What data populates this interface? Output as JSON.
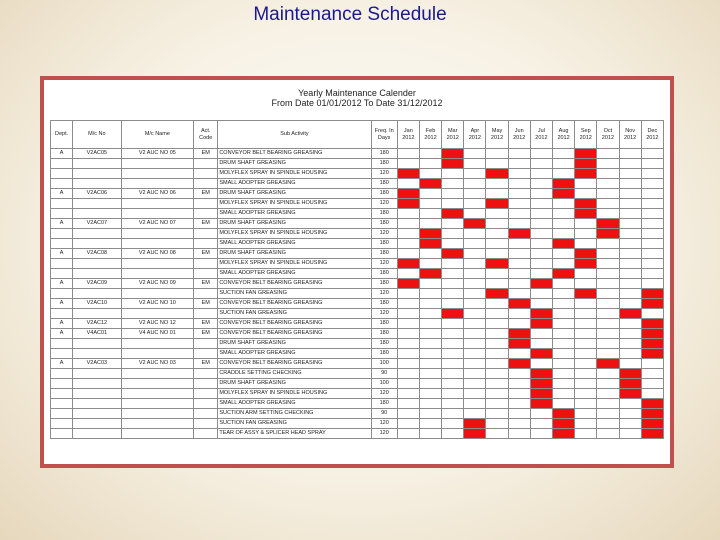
{
  "page_title": "Maintenance Schedule",
  "calendar": {
    "title": "Yearly Maintenance Calender",
    "date_range": "From Date 01/01/2012  To Date 31/12/2012"
  },
  "colors": {
    "frame": "#c0504d",
    "scheduled": "#ee1111"
  },
  "columns": [
    "Dept.",
    "M/c No",
    "M/c Name",
    "Act. Code",
    "Sub Activity",
    "Freq. In Days",
    "Jan 2012",
    "Feb 2012",
    "Mar 2012",
    "Apr 2012",
    "May 2012",
    "Jun 2012",
    "Jul 2012",
    "Aug 2012",
    "Sep 2012",
    "Oct 2012",
    "Nov 2012",
    "Dec 2012"
  ],
  "rows": [
    {
      "dept": "A",
      "mc_no": "V2AC05",
      "mc_name": "V2 AUC NO 05",
      "code": "EM",
      "activity": "CONVEYOR BELT BEARING GREASING",
      "freq": "180",
      "months": [
        0,
        0,
        1,
        0,
        0,
        0,
        0,
        0,
        1,
        0,
        0,
        0
      ]
    },
    {
      "dept": "",
      "mc_no": "",
      "mc_name": "",
      "code": "",
      "activity": "DRUM SHAFT GREASING",
      "freq": "180",
      "months": [
        0,
        0,
        1,
        0,
        0,
        0,
        0,
        0,
        1,
        0,
        0,
        0
      ]
    },
    {
      "dept": "",
      "mc_no": "",
      "mc_name": "",
      "code": "",
      "activity": "MOLYFLEX SPRAY IN SPINDLE HOUSING",
      "freq": "120",
      "months": [
        1,
        0,
        0,
        0,
        1,
        0,
        0,
        0,
        1,
        0,
        0,
        0
      ]
    },
    {
      "dept": "",
      "mc_no": "",
      "mc_name": "",
      "code": "",
      "activity": "SMALL ADOPTER GREASING",
      "freq": "180",
      "months": [
        0,
        1,
        0,
        0,
        0,
        0,
        0,
        1,
        0,
        0,
        0,
        0
      ]
    },
    {
      "dept": "A",
      "mc_no": "V2AC06",
      "mc_name": "V2 AUC NO 06",
      "code": "EM",
      "activity": "DRUM SHAFT GREASING",
      "freq": "180",
      "months": [
        1,
        0,
        0,
        0,
        0,
        0,
        0,
        1,
        0,
        0,
        0,
        0
      ]
    },
    {
      "dept": "",
      "mc_no": "",
      "mc_name": "",
      "code": "",
      "activity": "MOLYFLEX SPRAY IN SPINDLE HOUSING",
      "freq": "120",
      "months": [
        1,
        0,
        0,
        0,
        1,
        0,
        0,
        0,
        1,
        0,
        0,
        0
      ]
    },
    {
      "dept": "",
      "mc_no": "",
      "mc_name": "",
      "code": "",
      "activity": "SMALL ADOPTER GREASING",
      "freq": "180",
      "months": [
        0,
        0,
        1,
        0,
        0,
        0,
        0,
        0,
        1,
        0,
        0,
        0
      ]
    },
    {
      "dept": "A",
      "mc_no": "V2AC07",
      "mc_name": "V2 AUC NO 07",
      "code": "EM",
      "activity": "DRUM SHAFT GREASING",
      "freq": "180",
      "months": [
        0,
        0,
        0,
        1,
        0,
        0,
        0,
        0,
        0,
        1,
        0,
        0
      ]
    },
    {
      "dept": "",
      "mc_no": "",
      "mc_name": "",
      "code": "",
      "activity": "MOLYFLEX SPRAY IN SPINDLE HOUSING",
      "freq": "120",
      "months": [
        0,
        1,
        0,
        0,
        0,
        1,
        0,
        0,
        0,
        1,
        0,
        0
      ]
    },
    {
      "dept": "",
      "mc_no": "",
      "mc_name": "",
      "code": "",
      "activity": "SMALL ADOPTER GREASING",
      "freq": "180",
      "months": [
        0,
        1,
        0,
        0,
        0,
        0,
        0,
        1,
        0,
        0,
        0,
        0
      ]
    },
    {
      "dept": "A",
      "mc_no": "V2AC08",
      "mc_name": "V2 AUC NO 08",
      "code": "EM",
      "activity": "DRUM SHAFT GREASING",
      "freq": "180",
      "months": [
        0,
        0,
        1,
        0,
        0,
        0,
        0,
        0,
        1,
        0,
        0,
        0
      ]
    },
    {
      "dept": "",
      "mc_no": "",
      "mc_name": "",
      "code": "",
      "activity": "MOLYFLEX SPRAY IN SPINDLE HOUSING",
      "freq": "120",
      "months": [
        1,
        0,
        0,
        0,
        1,
        0,
        0,
        0,
        1,
        0,
        0,
        0
      ]
    },
    {
      "dept": "",
      "mc_no": "",
      "mc_name": "",
      "code": "",
      "activity": "SMALL ADOPTER GREASING",
      "freq": "180",
      "months": [
        0,
        1,
        0,
        0,
        0,
        0,
        0,
        1,
        0,
        0,
        0,
        0
      ]
    },
    {
      "dept": "A",
      "mc_no": "V2AC09",
      "mc_name": "V2 AUC NO 09",
      "code": "EM",
      "activity": "CONVEYOR BELT BEARING GREASING",
      "freq": "180",
      "months": [
        1,
        0,
        0,
        0,
        0,
        0,
        1,
        0,
        0,
        0,
        0,
        0
      ]
    },
    {
      "dept": "",
      "mc_no": "",
      "mc_name": "",
      "code": "",
      "activity": "SUCTION FAN GREASING",
      "freq": "120",
      "months": [
        0,
        0,
        0,
        0,
        1,
        0,
        0,
        0,
        1,
        0,
        0,
        1
      ]
    },
    {
      "dept": "A",
      "mc_no": "V2AC10",
      "mc_name": "V2 AUC NO 10",
      "code": "EM",
      "activity": "CONVEYOR BELT BEARING GREASING",
      "freq": "180",
      "months": [
        0,
        0,
        0,
        0,
        0,
        1,
        0,
        0,
        0,
        0,
        0,
        1
      ]
    },
    {
      "dept": "",
      "mc_no": "",
      "mc_name": "",
      "code": "",
      "activity": "SUCTION FAN GREASING",
      "freq": "120",
      "months": [
        0,
        0,
        1,
        0,
        0,
        0,
        1,
        0,
        0,
        0,
        1,
        0
      ]
    },
    {
      "dept": "A",
      "mc_no": "V2AC12",
      "mc_name": "V2 AUC NO 12",
      "code": "EM",
      "activity": "CONVEYOR BELT BEARING GREASING",
      "freq": "180",
      "months": [
        0,
        0,
        0,
        0,
        0,
        0,
        1,
        0,
        0,
        0,
        0,
        1
      ]
    },
    {
      "dept": "A",
      "mc_no": "V4AC01",
      "mc_name": "V4 AUC NO 01",
      "code": "EM",
      "activity": "CONVEYOR BELT BEARING GREASING",
      "freq": "180",
      "months": [
        0,
        0,
        0,
        0,
        0,
        1,
        0,
        0,
        0,
        0,
        0,
        1
      ]
    },
    {
      "dept": "",
      "mc_no": "",
      "mc_name": "",
      "code": "",
      "activity": "DRUM SHAFT GREASING",
      "freq": "180",
      "months": [
        0,
        0,
        0,
        0,
        0,
        1,
        0,
        0,
        0,
        0,
        0,
        1
      ]
    },
    {
      "dept": "",
      "mc_no": "",
      "mc_name": "",
      "code": "",
      "activity": "SMALL ADOPTER GREASING",
      "freq": "180",
      "months": [
        0,
        0,
        0,
        0,
        0,
        0,
        1,
        0,
        0,
        0,
        0,
        1
      ]
    },
    {
      "dept": "A",
      "mc_no": "V2AC03",
      "mc_name": "V2 AUC NO 03",
      "code": "EM",
      "activity": "CONVEYOR BELT BEARING GREASING",
      "freq": "100",
      "months": [
        0,
        0,
        0,
        0,
        0,
        1,
        0,
        0,
        0,
        1,
        0,
        0
      ]
    },
    {
      "dept": "",
      "mc_no": "",
      "mc_name": "",
      "code": "",
      "activity": "CRADDLE SETTING CHECKING",
      "freq": "90",
      "months": [
        0,
        0,
        0,
        0,
        0,
        0,
        1,
        0,
        0,
        0,
        1,
        0
      ]
    },
    {
      "dept": "",
      "mc_no": "",
      "mc_name": "",
      "code": "",
      "activity": "DRUM SHAFT GREASING",
      "freq": "100",
      "months": [
        0,
        0,
        0,
        0,
        0,
        0,
        1,
        0,
        0,
        0,
        1,
        0
      ]
    },
    {
      "dept": "",
      "mc_no": "",
      "mc_name": "",
      "code": "",
      "activity": "MOLYFLEX SPRAY IN SPINDLE HOUSING",
      "freq": "120",
      "months": [
        0,
        0,
        0,
        0,
        0,
        0,
        1,
        0,
        0,
        0,
        1,
        0
      ]
    },
    {
      "dept": "",
      "mc_no": "",
      "mc_name": "",
      "code": "",
      "activity": "SMALL ADOPTER GREASING",
      "freq": "180",
      "months": [
        0,
        0,
        0,
        0,
        0,
        0,
        1,
        0,
        0,
        0,
        0,
        1
      ]
    },
    {
      "dept": "",
      "mc_no": "",
      "mc_name": "",
      "code": "",
      "activity": "SUCTION ARM SETTING CHECKING",
      "freq": "90",
      "months": [
        0,
        0,
        0,
        0,
        0,
        0,
        0,
        1,
        0,
        0,
        0,
        1
      ]
    },
    {
      "dept": "",
      "mc_no": "",
      "mc_name": "",
      "code": "",
      "activity": "SUCTION FAN GREASING",
      "freq": "120",
      "months": [
        0,
        0,
        0,
        1,
        0,
        0,
        0,
        1,
        0,
        0,
        0,
        1
      ]
    },
    {
      "dept": "",
      "mc_no": "",
      "mc_name": "",
      "code": "",
      "activity": "TEAR OF ASSY & SPLICER HEAD SPRAY",
      "freq": "120",
      "months": [
        0,
        0,
        0,
        1,
        0,
        0,
        0,
        1,
        0,
        0,
        0,
        1
      ]
    }
  ]
}
